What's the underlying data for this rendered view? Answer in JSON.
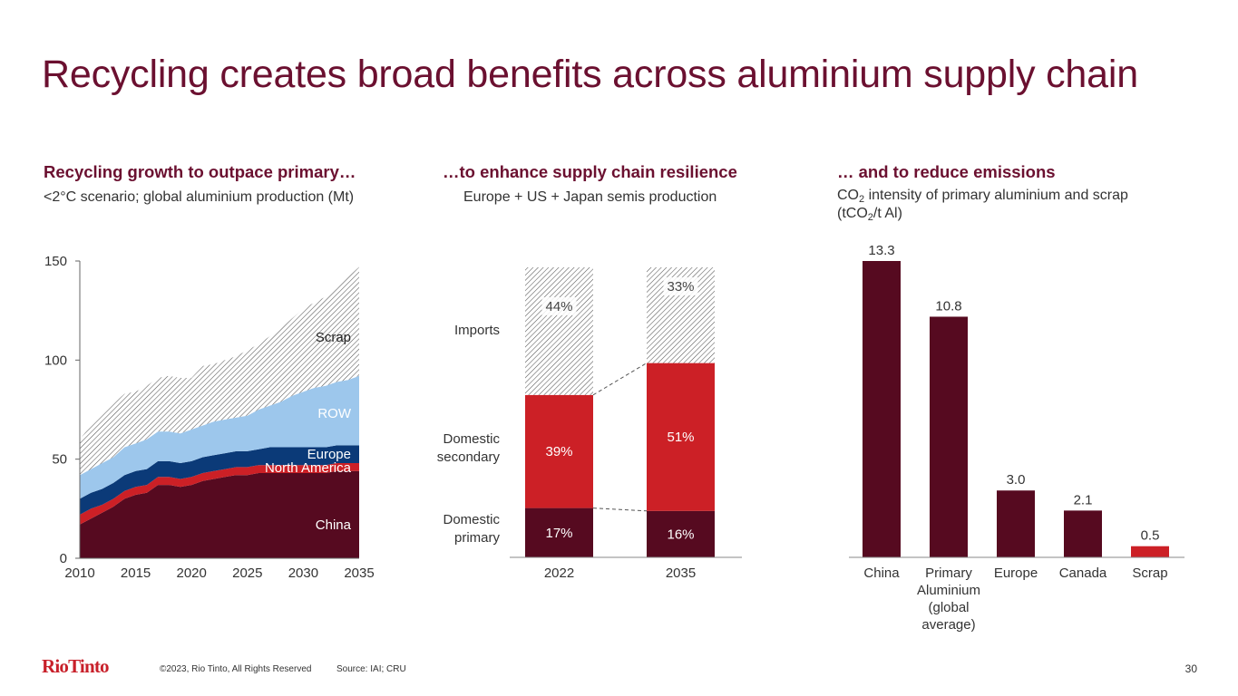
{
  "title": "Recycling creates broad benefits across aluminium supply chain",
  "colors": {
    "title": "#6b1030",
    "china": "#560a20",
    "north_america": "#cc2026",
    "europe": "#0b3a78",
    "row": "#9dc7ec",
    "scrap_hatch": "#555555",
    "bar_dark": "#560a20",
    "bar_red": "#cc2026"
  },
  "panels": {
    "left": {
      "heading": "Recycling growth to outpace primary…",
      "subtitle": "<2°C scenario; global aluminium production (Mt)"
    },
    "middle": {
      "heading": "…to enhance supply chain resilience",
      "subtitle": "Europe + US + Japan semis production"
    },
    "right": {
      "heading": "… and to reduce emissions",
      "subtitle_pre": "CO",
      "subtitle_sub1": "2",
      "subtitle_mid": " intensity of primary aluminium and scrap (tCO",
      "subtitle_sub2": "2",
      "subtitle_post": "/t Al)"
    }
  },
  "chart_data": [
    {
      "type": "area",
      "stacked": true,
      "ylim": [
        0,
        150
      ],
      "yticks": [
        "0",
        "50",
        "100",
        "150"
      ],
      "xticks": [
        "2010",
        "2015",
        "2020",
        "2025",
        "2030",
        "2035"
      ],
      "xtick_values": [
        2010,
        2015,
        2020,
        2025,
        2030,
        2035
      ],
      "x": [
        2010,
        2011,
        2012,
        2013,
        2014,
        2015,
        2016,
        2017,
        2018,
        2019,
        2020,
        2021,
        2022,
        2023,
        2024,
        2025,
        2026,
        2027,
        2028,
        2029,
        2030,
        2031,
        2032,
        2033,
        2034,
        2035
      ],
      "series": [
        {
          "name": "China",
          "key": "china",
          "values": [
            17,
            20,
            23,
            26,
            30,
            32,
            33,
            37,
            37,
            36,
            37,
            39,
            40,
            41,
            42,
            42,
            43,
            43,
            43,
            43,
            43,
            43,
            43,
            44,
            44,
            44
          ]
        },
        {
          "name": "North America",
          "key": "north_america",
          "values": [
            5,
            5,
            4,
            4,
            4,
            4,
            4,
            4,
            4,
            4,
            4,
            4,
            4,
            4,
            4,
            4,
            4,
            4,
            4,
            4,
            4,
            4,
            4,
            4,
            4,
            4
          ]
        },
        {
          "name": "Europe",
          "key": "europe",
          "values": [
            8,
            8,
            8,
            8,
            8,
            8,
            8,
            8,
            8,
            8,
            8,
            8,
            8,
            8,
            8,
            8,
            8,
            9,
            9,
            9,
            9,
            9,
            9,
            9,
            9,
            9
          ]
        },
        {
          "name": "ROW",
          "key": "row",
          "values": [
            12,
            12,
            13,
            13,
            14,
            14,
            15,
            15,
            15,
            15,
            16,
            16,
            17,
            17,
            17,
            18,
            20,
            21,
            23,
            26,
            28,
            30,
            31,
            32,
            33,
            35
          ]
        },
        {
          "name": "Scrap",
          "key": "scrap",
          "values": [
            18,
            22,
            25,
            27,
            27,
            26,
            27,
            27,
            28,
            28,
            26,
            30,
            29,
            30,
            31,
            33,
            33,
            35,
            37,
            39,
            42,
            43,
            45,
            47,
            52,
            55
          ]
        }
      ],
      "labels": [
        "Scrap",
        "ROW",
        "Europe",
        "North America",
        "China"
      ]
    },
    {
      "type": "bar",
      "stacked": true,
      "percent": true,
      "categories": [
        "2022",
        "2035"
      ],
      "series": [
        {
          "name": "Domestic primary",
          "label": "Domestic primary",
          "label_line1": "Domestic",
          "label_line2": "primary",
          "key": "bar_dark",
          "values": [
            17,
            16
          ],
          "display": [
            "17%",
            "16%"
          ]
        },
        {
          "name": "Domestic secondary",
          "label": "Domestic secondary",
          "label_line1": "Domestic",
          "label_line2": "secondary",
          "key": "bar_red",
          "values": [
            39,
            51
          ],
          "display": [
            "39%",
            "51%"
          ]
        },
        {
          "name": "Imports",
          "label": "Imports",
          "key": "scrap",
          "values": [
            44,
            33
          ],
          "display": [
            "44%",
            "33%"
          ]
        }
      ]
    },
    {
      "type": "bar",
      "ylim": [
        0,
        13.3
      ],
      "categories": [
        "China",
        "Primary Aluminium (global average)",
        "Europe",
        "Canada",
        "Scrap"
      ],
      "category_lines": [
        [
          "China"
        ],
        [
          "Primary",
          "Aluminium",
          "(global",
          "average)"
        ],
        [
          "Europe"
        ],
        [
          "Canada"
        ],
        [
          "Scrap"
        ]
      ],
      "values": [
        13.3,
        10.8,
        3.0,
        2.1,
        0.5
      ],
      "value_labels": [
        "13.3",
        "10.8",
        "3.0",
        "2.1",
        "0.5"
      ],
      "bar_colors": [
        "bar_dark",
        "bar_dark",
        "bar_dark",
        "bar_dark",
        "bar_red"
      ]
    }
  ],
  "footer": {
    "logo": "RioTinto",
    "copyright": "©2023, Rio Tinto, All Rights Reserved",
    "source": "Source: IAI; CRU",
    "page_number": "30"
  }
}
